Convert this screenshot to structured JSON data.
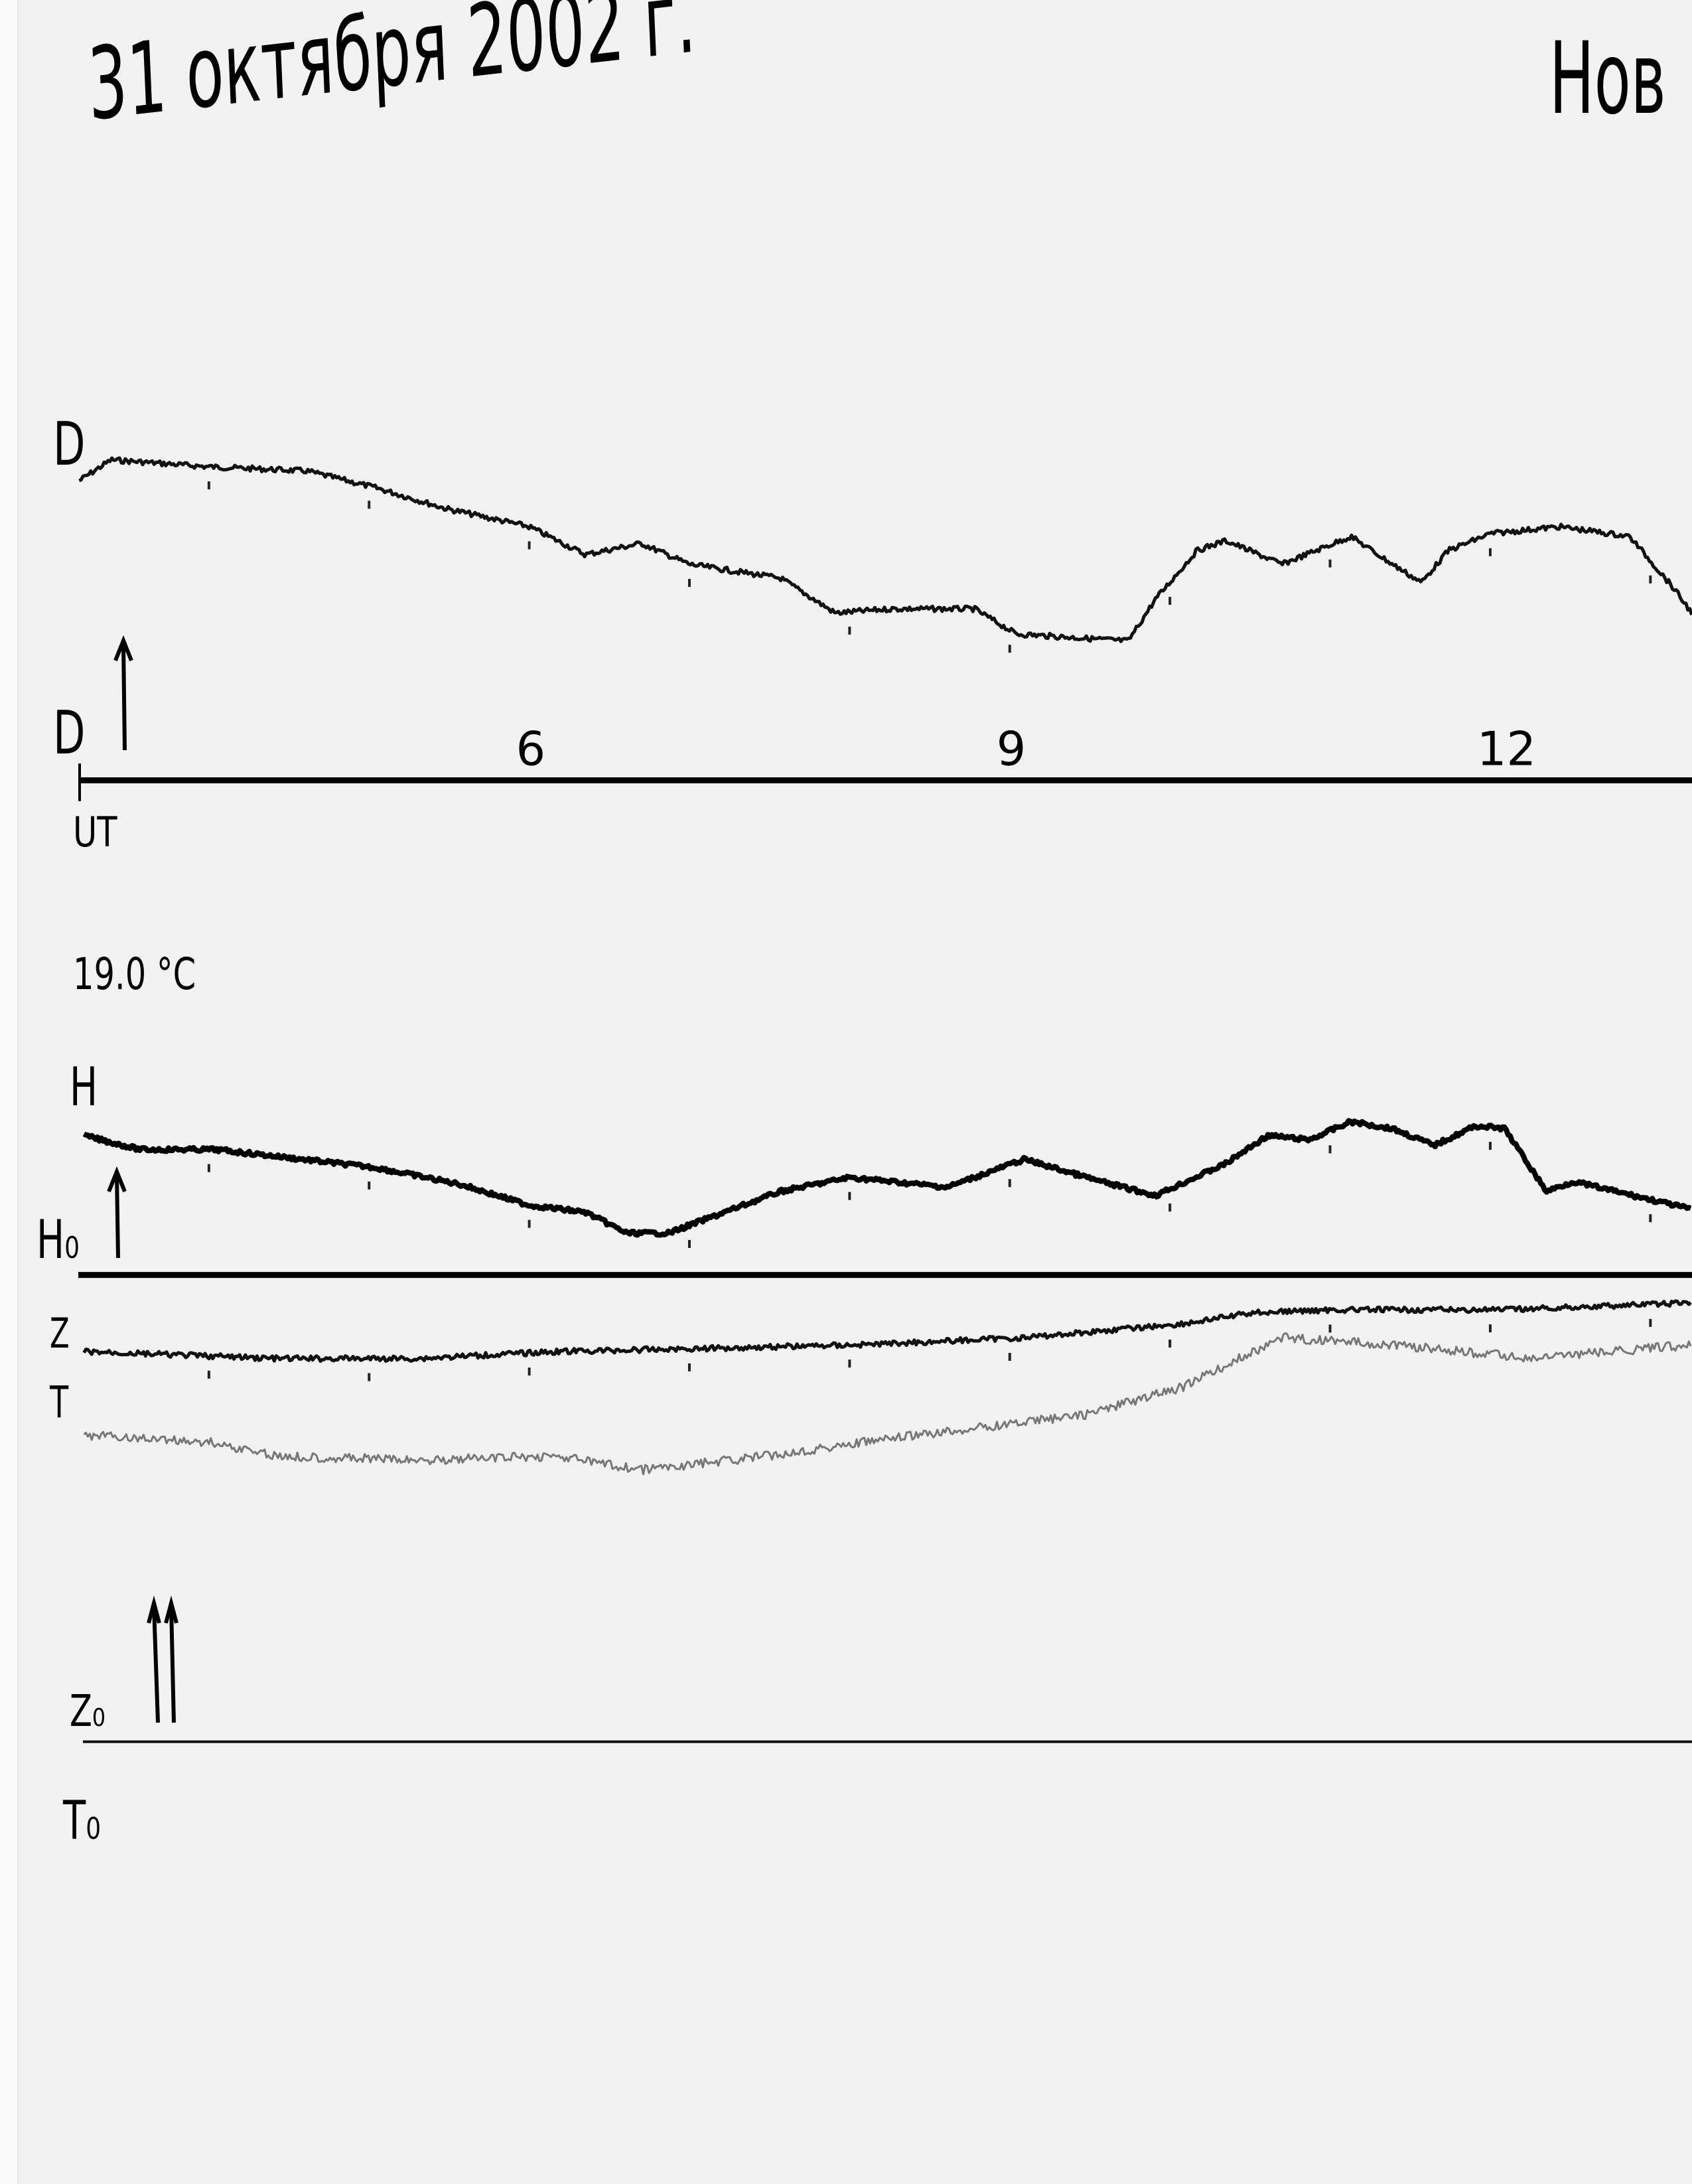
{
  "header": {
    "date_title": "31 октября 2002 г.",
    "station_title": "Нов"
  },
  "labels": {
    "d_trace": "D",
    "d_baseline": "D",
    "ut": "UT",
    "temperature": "19.0 °C",
    "h_trace": "H",
    "h_baseline": "H₀",
    "z_trace": "Z",
    "t_trace": "T",
    "z_baseline": "Z₀",
    "t_baseline": "T₀"
  },
  "chart_data": {
    "type": "line",
    "title": "31 октября 2002 г.",
    "xlabel": "UT",
    "x_tick_labels": [
      "6",
      "9",
      "12"
    ],
    "x_ticks": [
      6,
      9,
      12
    ],
    "xlim": [
      3.2,
      13.3
    ],
    "hour_marks": [
      4,
      5,
      6,
      7,
      8,
      9,
      10,
      11,
      12,
      13
    ],
    "grid": false,
    "colors": {
      "D": "#111111",
      "H": "#000000",
      "Z": "#111111",
      "T": "#777777"
    },
    "series": [
      {
        "name": "D",
        "x": [
          3.19,
          3.39,
          4.0,
          4.61,
          5.04,
          5.48,
          6.0,
          6.35,
          6.7,
          7.0,
          7.57,
          7.91,
          8.26,
          8.78,
          9.04,
          9.74,
          9.91,
          10.17,
          10.35,
          10.7,
          11.13,
          11.39,
          11.57,
          11.74,
          12.0,
          12.43,
          12.87,
          13.13,
          13.26
        ],
        "y": [
          215,
          230,
          225,
          222,
          210,
          195,
          182,
          162,
          170,
          155,
          145,
          120,
          123,
          123,
          105,
          100,
          130,
          165,
          172,
          155,
          175,
          155,
          142,
          165,
          177,
          182,
          175,
          140,
          120
        ]
      },
      {
        "name": "H",
        "x": [
          3.22,
          3.57,
          4.04,
          4.43,
          5.04,
          5.57,
          6.0,
          6.35,
          6.61,
          6.87,
          7.22,
          7.57,
          8.0,
          8.61,
          9.09,
          9.57,
          9.91,
          10.35,
          10.61,
          10.87,
          11.13,
          11.39,
          11.65,
          11.91,
          12.09,
          12.35,
          12.52,
          12.78,
          13.26
        ],
        "y": [
          100,
          90,
          90,
          85,
          77,
          65,
          50,
          45,
          30,
          30,
          45,
          60,
          70,
          63,
          83,
          67,
          57,
          80,
          100,
          97,
          110,
          105,
          93,
          107,
          105,
          60,
          67,
          60,
          47
        ]
      },
      {
        "name": "Z",
        "x": [
          3.22,
          4.43,
          5.3,
          6.17,
          7.0,
          8.09,
          9.09,
          10.09,
          10.52,
          11.04,
          12.09,
          13.26
        ],
        "y": [
          280,
          275,
          275,
          280,
          282,
          285,
          290,
          300,
          308,
          310,
          310,
          315
        ]
      },
      {
        "name": "T",
        "x": [
          3.22,
          4.0,
          4.43,
          5.3,
          6.17,
          6.7,
          7.48,
          8.09,
          8.78,
          9.48,
          10.09,
          10.52,
          10.7,
          11.39,
          12.26,
          13.26
        ],
        "y": [
          220,
          215,
          205,
          202,
          205,
          195,
          205,
          215,
          225,
          235,
          255,
          280,
          290,
          285,
          275,
          285
        ]
      }
    ]
  }
}
